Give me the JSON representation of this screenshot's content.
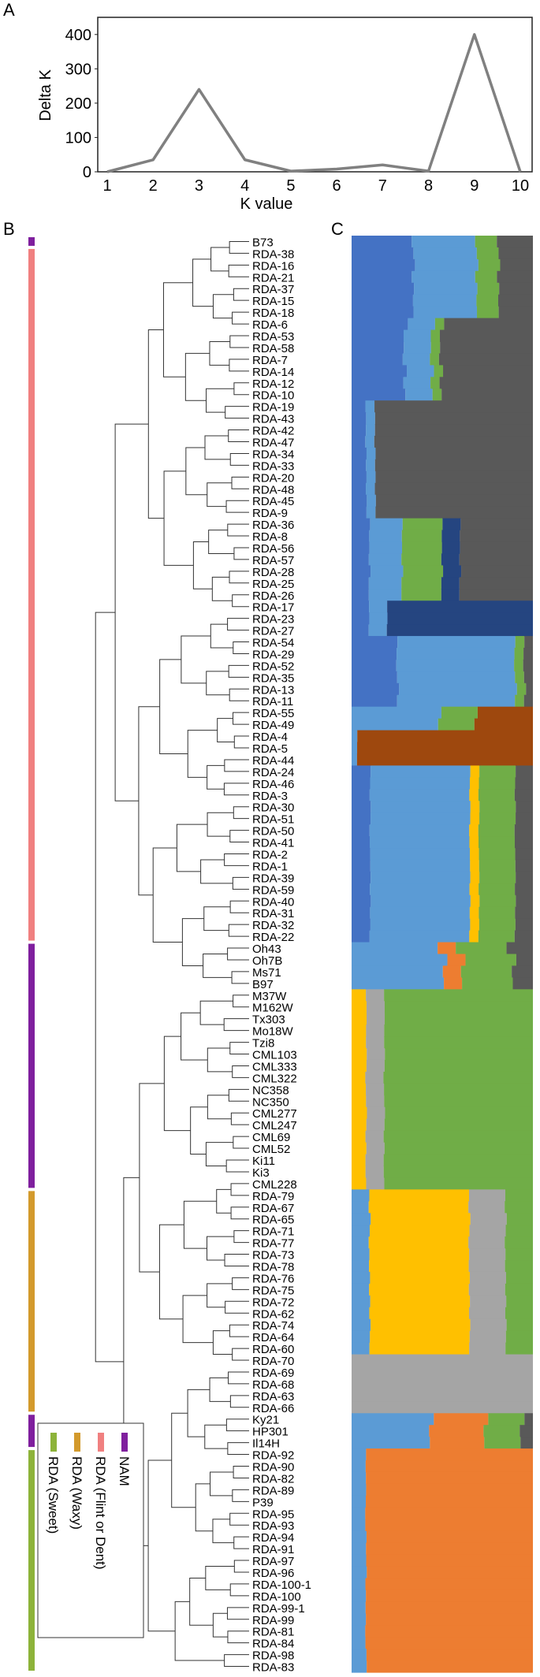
{
  "panel_labels": {
    "a": "A",
    "b": "B",
    "c": "C"
  },
  "colors": {
    "line": "#808080",
    "blue": "#4472C4",
    "lightblue": "#5B9BD5",
    "gray": "#595959",
    "navy": "#254580",
    "brown": "#9E480E",
    "green": "#70AD47",
    "yellow": "#FFC000",
    "lightgray": "#A5A5A5",
    "orange": "#ED7D31",
    "bar_nam": "#7F1F9E",
    "bar_flint": "#F08080",
    "bar_waxy": "#D39A2C",
    "bar_sweet": "#8DB33A"
  },
  "chart_data": [
    {
      "type": "line",
      "title": "",
      "xlabel": "K value",
      "ylabel": "Delta K",
      "x": [
        1,
        2,
        3,
        4,
        5,
        6,
        7,
        8,
        9,
        10
      ],
      "y": [
        0,
        35,
        240,
        35,
        2,
        8,
        20,
        2,
        400,
        0
      ],
      "xlim": [
        1,
        10
      ],
      "ylim": [
        0,
        450
      ],
      "yticks": [
        0,
        100,
        200,
        300,
        400
      ],
      "grid": false
    },
    {
      "type": "heatmap",
      "title": "",
      "samples": [
        "B73",
        "RDA-38",
        "RDA-16",
        "RDA-21",
        "RDA-37",
        "RDA-15",
        "RDA-18",
        "RDA-6",
        "RDA-53",
        "RDA-58",
        "RDA-7",
        "RDA-14",
        "RDA-12",
        "RDA-10",
        "RDA-19",
        "RDA-43",
        "RDA-42",
        "RDA-47",
        "RDA-34",
        "RDA-33",
        "RDA-20",
        "RDA-48",
        "RDA-45",
        "RDA-9",
        "RDA-36",
        "RDA-8",
        "RDA-56",
        "RDA-57",
        "RDA-28",
        "RDA-25",
        "RDA-26",
        "RDA-17",
        "RDA-23",
        "RDA-27",
        "RDA-54",
        "RDA-29",
        "RDA-52",
        "RDA-35",
        "RDA-13",
        "RDA-11",
        "RDA-55",
        "RDA-49",
        "RDA-4",
        "RDA-5",
        "RDA-44",
        "RDA-24",
        "RDA-46",
        "RDA-3",
        "RDA-30",
        "RDA-51",
        "RDA-50",
        "RDA-41",
        "RDA-2",
        "RDA-1",
        "RDA-39",
        "RDA-59",
        "RDA-40",
        "RDA-31",
        "RDA-32",
        "RDA-22",
        "Oh43",
        "Oh7B",
        "Ms71",
        "B97",
        "M37W",
        "M162W",
        "Tx303",
        "Mo18W",
        "Tzi8",
        "CML103",
        "CML333",
        "CML322",
        "NC358",
        "NC350",
        "CML277",
        "CML247",
        "CML69",
        "CML52",
        "Ki11",
        "Ki3",
        "CML228",
        "RDA-79",
        "RDA-67",
        "RDA-65",
        "RDA-71",
        "RDA-77",
        "RDA-73",
        "RDA-78",
        "RDA-76",
        "RDA-75",
        "RDA-72",
        "RDA-62",
        "RDA-74",
        "RDA-64",
        "RDA-60",
        "RDA-70",
        "RDA-69",
        "RDA-68",
        "RDA-63",
        "RDA-66",
        "Ky21",
        "HP301",
        "Il14H",
        "RDA-92",
        "RDA-90",
        "RDA-82",
        "RDA-89",
        "P39",
        "RDA-95",
        "RDA-93",
        "RDA-94",
        "RDA-91",
        "RDA-97",
        "RDA-96",
        "RDA-100-1",
        "RDA-100",
        "RDA-99-1",
        "RDA-99",
        "RDA-81",
        "RDA-84",
        "RDA-98",
        "RDA-83"
      ],
      "group_bars": [
        {
          "group": "NAM",
          "from": "B73",
          "to": "B73"
        },
        {
          "group": "RDA (Flint or Dent)",
          "from": "RDA-38",
          "to": "RDA-22"
        },
        {
          "group": "NAM",
          "from": "Oh43",
          "to": "CML228"
        },
        {
          "group": "RDA (Waxy)",
          "from": "RDA-79",
          "to": "RDA-66"
        },
        {
          "group": "NAM",
          "from": "Ky21",
          "to": "Il14H"
        },
        {
          "group": "RDA (Sweet)",
          "from": "RDA-92",
          "to": "RDA-83"
        }
      ],
      "legend": {
        "placement": "bottom-left",
        "entries": [
          {
            "label": "NAM",
            "color": "#7F1F9E"
          },
          {
            "label": "RDA (Flint or Dent)",
            "color": "#F08080"
          },
          {
            "label": "RDA (Waxy)",
            "color": "#D39A2C"
          },
          {
            "label": "RDA (Sweet)",
            "color": "#8DB33A"
          }
        ]
      },
      "structure_blocks": [
        {
          "from": "B73",
          "to": "RDA-18",
          "mix": {
            "blue": 0.35,
            "lightblue": 0.35,
            "gray": 0.18,
            "green": 0.12
          }
        },
        {
          "from": "RDA-6",
          "to": "RDA-10",
          "mix": {
            "blue": 0.3,
            "lightblue": 0.15,
            "gray": 0.5,
            "green": 0.05
          }
        },
        {
          "from": "RDA-19",
          "to": "RDA-9",
          "mix": {
            "blue": 0.08,
            "lightblue": 0.05,
            "gray": 0.87
          }
        },
        {
          "from": "RDA-36",
          "to": "RDA-26",
          "mix": {
            "blue": 0.1,
            "lightblue": 0.18,
            "green": 0.22,
            "navy": 0.1,
            "gray": 0.4
          }
        },
        {
          "from": "RDA-17",
          "to": "RDA-27",
          "mix": {
            "navy": 0.8,
            "blue": 0.1,
            "lightblue": 0.1
          }
        },
        {
          "from": "RDA-54",
          "to": "RDA-11",
          "mix": {
            "blue": 0.25,
            "lightblue": 0.65,
            "green": 0.05,
            "gray": 0.05
          }
        },
        {
          "from": "RDA-55",
          "to": "RDA-49",
          "mix": {
            "lightblue": 0.5,
            "green": 0.2,
            "brown": 0.3
          }
        },
        {
          "from": "RDA-4",
          "to": "RDA-44",
          "mix": {
            "brown": 0.97,
            "lightblue": 0.03
          }
        },
        {
          "from": "RDA-24",
          "to": "RDA-22",
          "mix": {
            "blue": 0.1,
            "lightblue": 0.55,
            "green": 0.2,
            "gray": 0.1,
            "yellow": 0.05
          }
        },
        {
          "from": "Oh43",
          "to": "B97",
          "mix": {
            "orange": 0.1,
            "lightblue": 0.5,
            "green": 0.28,
            "gray": 0.12
          }
        },
        {
          "from": "M37W",
          "to": "CML228",
          "mix": {
            "lightgray": 0.1,
            "yellow": 0.08,
            "green": 0.82
          }
        },
        {
          "from": "RDA-79",
          "to": "RDA-60",
          "mix": {
            "lightgray": 0.2,
            "yellow": 0.55,
            "lightblue": 0.1,
            "green": 0.15
          }
        },
        {
          "from": "RDA-70",
          "to": "RDA-66",
          "mix": {
            "lightgray": 1.0
          }
        },
        {
          "from": "Ky21",
          "to": "Il14H",
          "mix": {
            "orange": 0.3,
            "lightblue": 0.45,
            "green": 0.2,
            "gray": 0.05
          }
        },
        {
          "from": "RDA-92",
          "to": "RDA-83",
          "mix": {
            "orange": 0.92,
            "lightblue": 0.08
          }
        }
      ]
    }
  ]
}
